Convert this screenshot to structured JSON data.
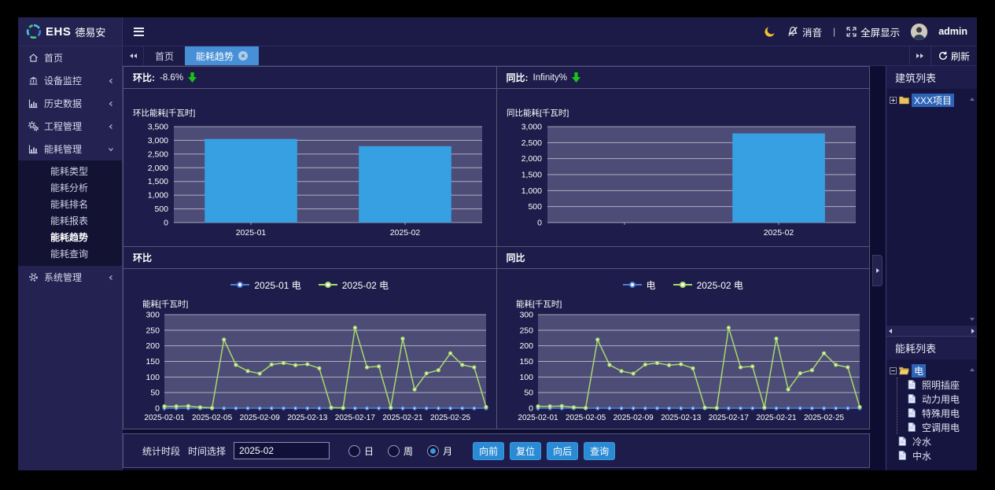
{
  "brand": {
    "ehs": "EHS",
    "name": "德易安"
  },
  "topbar": {
    "mute": "消音",
    "divider": "|",
    "fullscreen": "全屏显示",
    "user": "admin"
  },
  "tabbar": {
    "tabs": [
      {
        "label": "首页",
        "active": false,
        "closable": false
      },
      {
        "label": "能耗趋势",
        "active": true,
        "closable": true
      }
    ],
    "refresh": "刷新"
  },
  "sidebar": {
    "items": [
      {
        "label": "首页",
        "icon": "home-icon",
        "chevron": "none"
      },
      {
        "label": "设备监控",
        "icon": "device-monitor-icon",
        "chevron": "left"
      },
      {
        "label": "历史数据",
        "icon": "history-chart-icon",
        "chevron": "left"
      },
      {
        "label": "工程管理",
        "icon": "gears-icon",
        "chevron": "left"
      },
      {
        "label": "能耗管理",
        "icon": "energy-chart-icon",
        "chevron": "down",
        "expanded": true,
        "children": [
          {
            "label": "能耗类型",
            "active": false
          },
          {
            "label": "能耗分析",
            "active": false
          },
          {
            "label": "能耗排名",
            "active": false
          },
          {
            "label": "能耗报表",
            "active": false
          },
          {
            "label": "能耗趋势",
            "active": true
          },
          {
            "label": "能耗查询",
            "active": false
          }
        ]
      },
      {
        "label": "系统管理",
        "icon": "gear-icon",
        "chevron": "left"
      }
    ]
  },
  "panels": {
    "hb_bar": {
      "title": "环比:",
      "value": "-8.6%",
      "trend": "down",
      "trend_color": "#17c517"
    },
    "tb_bar": {
      "title": "同比:",
      "value": "Infinity%",
      "trend": "down",
      "trend_color": "#17c517"
    },
    "hb_line": {
      "title": "环比"
    },
    "tb_line": {
      "title": "同比"
    }
  },
  "controls": {
    "periodLabel": "统计时段",
    "timeLabel": "时间选择",
    "timeValue": "2025-02",
    "radios": [
      {
        "label": "日",
        "checked": false
      },
      {
        "label": "周",
        "checked": false
      },
      {
        "label": "月",
        "checked": true
      }
    ],
    "buttons": [
      "向前",
      "复位",
      "向后",
      "查询"
    ]
  },
  "rightPanel": {
    "buildingsTitle": "建筑列表",
    "energyTitle": "能耗列表",
    "buildingsTree": [
      {
        "label": "XXX项目",
        "icon": "folder",
        "expander": "plus",
        "selected": true
      }
    ],
    "energyTree": [
      {
        "label": "电",
        "icon": "folder-open",
        "expander": "minus",
        "selected": true,
        "children": [
          {
            "label": "照明插座",
            "icon": "file"
          },
          {
            "label": "动力用电",
            "icon": "file"
          },
          {
            "label": "特殊用电",
            "icon": "file"
          },
          {
            "label": "空调用电",
            "icon": "file"
          }
        ]
      },
      {
        "label": "冷水",
        "icon": "file"
      },
      {
        "label": "中水",
        "icon": "file"
      }
    ]
  },
  "icons": {
    "brand": "ring-logo",
    "topbar": [
      "moon-icon",
      "bell-slash-icon",
      "fullscreen-icon",
      "avatar"
    ],
    "tabbar": [
      "double-left-icon",
      "double-right-icon",
      "refresh-icon"
    ],
    "summary": "green-down-arrow-icon",
    "tree": [
      "folder-icon",
      "folder-open-icon",
      "file-icon",
      "plus-expander",
      "minus-expander"
    ]
  },
  "chart_data": [
    {
      "id": "hb_bar",
      "type": "bar",
      "ylabel": "环比能耗[千瓦时]",
      "categories": [
        "2025-01",
        "2025-02"
      ],
      "values": [
        3050,
        2788
      ],
      "ylim": [
        0,
        3500
      ],
      "ytick_step": 500,
      "color": "#36a0e2",
      "plot_bg": "#4c4c77",
      "grid": true,
      "legend_position": "none"
    },
    {
      "id": "tb_bar",
      "type": "bar",
      "ylabel": "同比能耗[千瓦时]",
      "categories": [
        "",
        "2025-02"
      ],
      "values": [
        null,
        2788
      ],
      "ylim": [
        0,
        3000
      ],
      "ytick_step": 500,
      "color": "#36a0e2",
      "plot_bg": "#4c4c77",
      "grid": true,
      "legend_position": "none"
    },
    {
      "id": "hb_line",
      "type": "line",
      "ylabel": "能耗[千瓦时]",
      "x": [
        "2025-02-01",
        "2025-02-02",
        "2025-02-03",
        "2025-02-04",
        "2025-02-05",
        "2025-02-06",
        "2025-02-07",
        "2025-02-08",
        "2025-02-09",
        "2025-02-10",
        "2025-02-11",
        "2025-02-12",
        "2025-02-13",
        "2025-02-14",
        "2025-02-15",
        "2025-02-16",
        "2025-02-17",
        "2025-02-18",
        "2025-02-19",
        "2025-02-20",
        "2025-02-21",
        "2025-02-22",
        "2025-02-23",
        "2025-02-24",
        "2025-02-25",
        "2025-02-26",
        "2025-02-27",
        "2025-02-28"
      ],
      "xtick_every": 4,
      "series": [
        {
          "name": "2025-01 电",
          "color": "#4e7fd6",
          "values": [
            0,
            0,
            0,
            0,
            0,
            0,
            0,
            0,
            0,
            0,
            0,
            0,
            0,
            0,
            0,
            0,
            0,
            0,
            0,
            0,
            0,
            0,
            0,
            0,
            0,
            0,
            0,
            0
          ]
        },
        {
          "name": "2025-02 电",
          "color": "#a8d96a",
          "values": [
            6,
            6,
            7,
            3,
            1,
            220,
            139,
            119,
            111,
            140,
            145,
            138,
            141,
            128,
            2,
            1,
            258,
            131,
            134,
            2,
            223,
            60,
            112,
            122,
            176,
            139,
            131,
            4
          ]
        }
      ],
      "ylim": [
        0,
        300
      ],
      "ytick_step": 50,
      "plot_bg": "#4c4c77",
      "grid": true,
      "legend_position": "top"
    },
    {
      "id": "tb_line",
      "type": "line",
      "ylabel": "能耗[千瓦时]",
      "x": [
        "2025-02-01",
        "2025-02-02",
        "2025-02-03",
        "2025-02-04",
        "2025-02-05",
        "2025-02-06",
        "2025-02-07",
        "2025-02-08",
        "2025-02-09",
        "2025-02-10",
        "2025-02-11",
        "2025-02-12",
        "2025-02-13",
        "2025-02-14",
        "2025-02-15",
        "2025-02-16",
        "2025-02-17",
        "2025-02-18",
        "2025-02-19",
        "2025-02-20",
        "2025-02-21",
        "2025-02-22",
        "2025-02-23",
        "2025-02-24",
        "2025-02-25",
        "2025-02-26",
        "2025-02-27",
        "2025-02-28"
      ],
      "xtick_every": 4,
      "series": [
        {
          "name": "电",
          "color": "#4e7fd6",
          "values": [
            0,
            0,
            0,
            0,
            0,
            0,
            0,
            0,
            0,
            0,
            0,
            0,
            0,
            0,
            0,
            0,
            0,
            0,
            0,
            0,
            0,
            0,
            0,
            0,
            0,
            0,
            0,
            0
          ]
        },
        {
          "name": "2025-02 电",
          "color": "#a8d96a",
          "values": [
            6,
            6,
            7,
            3,
            1,
            220,
            139,
            119,
            111,
            140,
            145,
            138,
            141,
            128,
            2,
            1,
            258,
            131,
            134,
            2,
            223,
            60,
            112,
            122,
            176,
            139,
            131,
            4
          ]
        }
      ],
      "ylim": [
        0,
        300
      ],
      "ytick_step": 50,
      "plot_bg": "#4c4c77",
      "grid": true,
      "legend_position": "top"
    }
  ]
}
